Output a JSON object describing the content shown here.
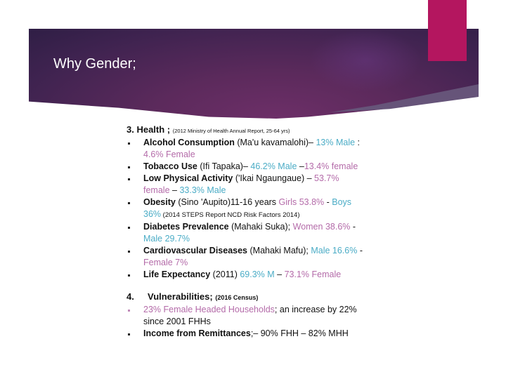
{
  "slide": {
    "title": "Why Gender;",
    "colors": {
      "accent_bar": "#b4165f",
      "header": "#5c2a5c",
      "male": "#4bacc6",
      "female": "#b46ba9"
    }
  },
  "health": {
    "heading": "3. Health ;",
    "reference": "(2012 Ministry of Health Annual Report, 25-64 yrs)",
    "items": [
      {
        "term": "Alcohol Consumption",
        "local": " (Ma'u kavamalohi)– ",
        "v1": "13% Male",
        "sep": " : ",
        "v2": "4.6% Female"
      },
      {
        "term": "Tobacco Use",
        "local": " (Ifi Tapaka)– ",
        "v1": "46.2% Male",
        "sep": "  –",
        "v2": "13.4% female"
      },
      {
        "term": "Low Physical Activity",
        "local": " ('Ikai Ngaungaue) – ",
        "v1": "53.7% female",
        "sep": " – ",
        "v2": "33.3% Male"
      },
      {
        "term": "Obesity",
        "local": " (Sino 'Aupito)11-16 years ",
        "v1": "Girls 53.8%",
        "sep": " - ",
        "v2": "Boys 36%",
        "note": " (2014 STEPS Report NCD Risk Factors 2014)"
      },
      {
        "term": "Diabetes Prevalence",
        "local": " (Mahaki Suka); ",
        "v1": "Women 38.6%",
        "sep": " - ",
        "v2": "Male 29.7%"
      },
      {
        "term": "Cardiovascular Diseases",
        "local": " (Mahaki Mafu); ",
        "v1": "Male 16.6%",
        "sep": " - ",
        "v2": "Female 7%"
      },
      {
        "term": "Life Expectancy",
        "local": " (2011) ",
        "v1": "69.3% M",
        "sep": " – ",
        "v2": "73.1% Female"
      }
    ]
  },
  "vulnerabilities": {
    "number": "4.",
    "heading": "Vulnerabilities;",
    "reference": "(2016 Census)",
    "items": [
      {
        "highlight": "23% Female Headed Households",
        "rest": "; an increase by 22% since 2001 FHHs"
      },
      {
        "term": "Income from Remittances",
        "rest": ";– 90% FHH – 82% MHH"
      }
    ]
  }
}
